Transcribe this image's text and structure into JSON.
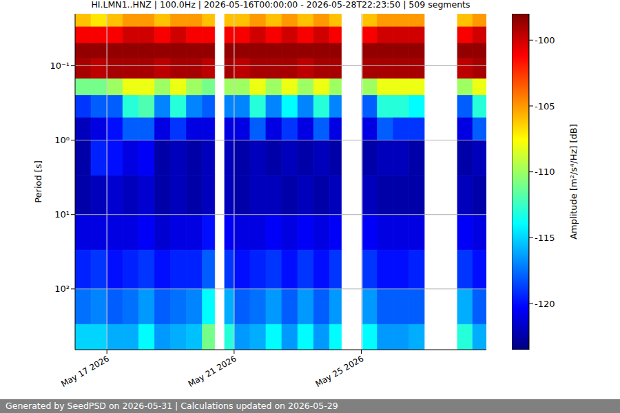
{
  "chart_data": {
    "type": "heatmap",
    "title": "HI.LMN1..HNZ | 100.0Hz | 2026-05-16T00:00:00 - 2026-05-28T22:23:50 | 509 segments",
    "y_label": "Period [s]",
    "log": "y",
    "grid": true,
    "xlim": [
      0,
      12.93
    ],
    "xticks": [
      {
        "value": 1,
        "label": "May 17 2026"
      },
      {
        "value": 5,
        "label": "May 21 2026"
      },
      {
        "value": 9,
        "label": "May 25 2026"
      }
    ],
    "ylim": [
      0.02,
      655
    ],
    "yticks": [
      {
        "value": 0.1,
        "label": "10⁻¹"
      },
      {
        "value": 1,
        "label": "10⁰"
      },
      {
        "value": 10,
        "label": "10¹"
      },
      {
        "value": 100,
        "label": "10²"
      }
    ],
    "x_edges": [
      0,
      0.5,
      1.0,
      1.5,
      2.0,
      2.5,
      3.0,
      3.5,
      4.0,
      4.39,
      4.7,
      5.0,
      5.5,
      6.0,
      6.5,
      7.0,
      7.5,
      8.0,
      8.37,
      9.04,
      9.5,
      10.0,
      10.5,
      10.98,
      12.02,
      12.5,
      12.93
    ],
    "y_edges": [
      0.02,
      0.03,
      0.05,
      0.08,
      0.15,
      0.25,
      0.5,
      1,
      3,
      10,
      30,
      100,
      300,
      655
    ],
    "cells": [
      [
        -106,
        -107,
        -106,
        -105,
        -105,
        -106,
        -105,
        -105,
        -106,
        null,
        -106,
        -106,
        -105,
        -106,
        -105,
        -106,
        -105,
        -106,
        null,
        -106,
        -105,
        -105,
        -105,
        null,
        -106,
        -105
      ],
      [
        -101,
        -101,
        -101,
        -100,
        -100,
        -101,
        -100,
        -101,
        -101,
        null,
        -101,
        -101,
        -100,
        -101,
        -100,
        -101,
        -100,
        -101,
        null,
        -101,
        -100,
        -100,
        -100,
        null,
        -101,
        -100
      ],
      [
        -98.5,
        -98.5,
        -98.5,
        -98.5,
        -98.5,
        -98.5,
        -98.5,
        -98.5,
        -98.5,
        null,
        -98.5,
        -98.5,
        -98.5,
        -98.5,
        -98.5,
        -98.5,
        -98.5,
        -98.5,
        null,
        -98.5,
        -98.5,
        -98.5,
        -98.5,
        null,
        -98.5,
        -98.5
      ],
      [
        -99,
        -99.5,
        -99,
        -99,
        -99,
        -99.5,
        -99,
        -99,
        -99.5,
        null,
        -99,
        -99.5,
        -99,
        -99,
        -99,
        -99.5,
        -99,
        -99,
        null,
        -99,
        -99,
        -99,
        -99,
        null,
        -99.5,
        -99
      ],
      [
        -111,
        -111,
        -110,
        -108,
        -108,
        -110,
        -108,
        -110,
        -111,
        null,
        -110,
        -110,
        -108,
        -110,
        -108,
        -110,
        -108,
        -110,
        null,
        -110,
        -108,
        -108,
        -108,
        null,
        -110,
        -108
      ],
      [
        -119,
        -118,
        -118,
        -113,
        -112,
        -117,
        -113,
        -117,
        -118,
        null,
        -117,
        -117,
        -113,
        -117,
        -114,
        -117,
        -113,
        -117,
        null,
        -118,
        -113,
        -113,
        -114,
        null,
        -118,
        -113
      ],
      [
        -122,
        -121,
        -120,
        -118,
        -118,
        -121,
        -119,
        -121,
        -121,
        null,
        -121,
        -121,
        -118,
        -121,
        -119,
        -121,
        -118,
        -121,
        null,
        -121,
        -118,
        -119,
        -119,
        null,
        -121,
        -118
      ],
      [
        -122.5,
        -119.5,
        -120,
        -121,
        -120.5,
        -122.5,
        -122,
        -122.5,
        -122,
        null,
        -122,
        -122.5,
        -122,
        -122.5,
        -122,
        -122.5,
        -122,
        -122.5,
        null,
        -122.5,
        -122,
        -122,
        -122.5,
        null,
        -122.5,
        -122
      ],
      [
        -122.5,
        -122,
        -121.5,
        -122,
        -121.5,
        -122.5,
        -122,
        -122.5,
        -122,
        null,
        -122,
        -122.5,
        -122,
        -122,
        -122.5,
        -122,
        -122.5,
        -122,
        null,
        -122,
        -122.5,
        -122.5,
        -122.5,
        null,
        -122,
        -122.5
      ],
      [
        -121,
        -121,
        -121,
        -121,
        -120.5,
        -121.5,
        -121,
        -121,
        -120,
        null,
        -120.5,
        -121,
        -121,
        -120.5,
        -121,
        -120.5,
        -121,
        -120.5,
        null,
        -120.5,
        -121,
        -121,
        -121,
        null,
        -120.5,
        -121
      ],
      [
        -119.5,
        -119,
        -120,
        -119.5,
        -119,
        -120,
        -119.5,
        -119.5,
        -118,
        null,
        -119,
        -120,
        -119.5,
        -119,
        -120,
        -119,
        -120,
        -119,
        null,
        -119,
        -120,
        -120,
        -119.5,
        null,
        -119,
        -120
      ],
      [
        -117.5,
        -117,
        -118,
        -117.5,
        -116.5,
        -118,
        -117.5,
        -117,
        -114,
        null,
        -116,
        -118,
        -117.5,
        -116.5,
        -118,
        -116.5,
        -118,
        -116.5,
        null,
        -116.5,
        -118,
        -118,
        -118,
        null,
        -116,
        -118
      ],
      [
        -115,
        -115,
        -116,
        -116,
        -114,
        -116.5,
        -116,
        -115.5,
        -111,
        null,
        -113,
        -116.5,
        -116,
        -114,
        -116.5,
        -114,
        -116.5,
        -114,
        null,
        -114,
        -116.5,
        -116.5,
        -116,
        null,
        -113,
        -116
      ]
    ],
    "colorbar": {
      "label": "Amplitude [m²/s⁴/Hz] [dB]",
      "range": [
        -123.5,
        -98
      ],
      "ticks": [
        -120,
        -115,
        -110,
        -105,
        -100
      ]
    }
  },
  "footer": "Generated by SeedPSD on 2026-05-31 | Calculations updated on 2026-05-29"
}
